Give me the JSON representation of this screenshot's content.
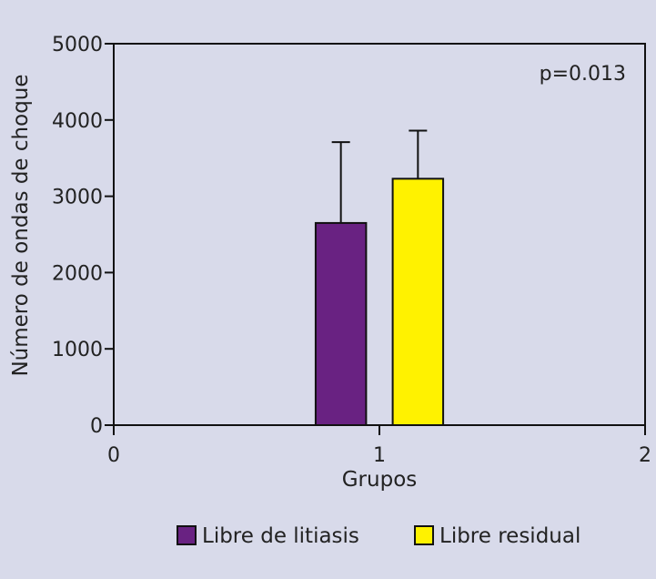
{
  "chart_data": {
    "type": "bar",
    "xlabel": "Grupos",
    "ylabel": "Número de ondas de choque",
    "xlim": [
      0,
      2
    ],
    "ylim": [
      0,
      5000
    ],
    "xticks": [
      "0",
      "1",
      "2"
    ],
    "yticks": [
      "0",
      "1000",
      "2000",
      "3000",
      "4000",
      "5000"
    ],
    "annotation": "p=0.013",
    "grid": false,
    "legend_position": "bottom",
    "series": [
      {
        "name": "Libre de litiasis",
        "x_center": 0.855,
        "value": 2650,
        "error": 1060,
        "color": "#692282"
      },
      {
        "name": "Libre residual",
        "x_center": 1.145,
        "value": 3230,
        "error": 630,
        "color": "#fff200"
      }
    ],
    "bar_width": 0.19
  }
}
